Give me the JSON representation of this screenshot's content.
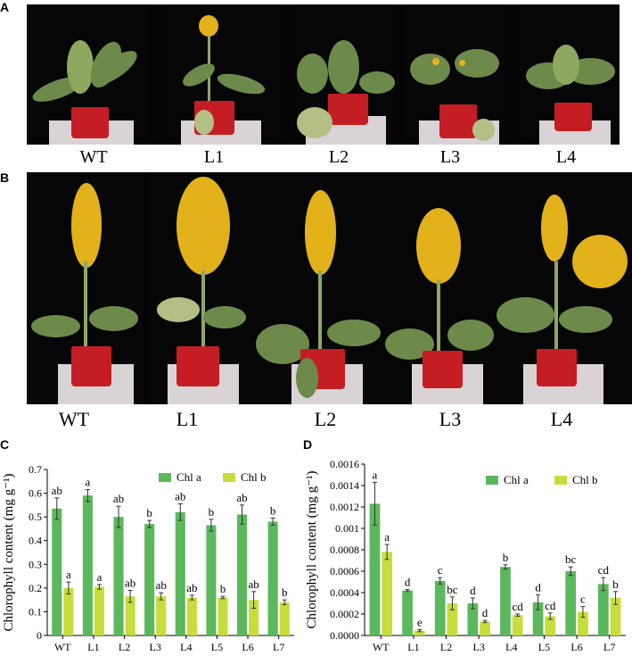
{
  "panels": {
    "A": {
      "letter": "A",
      "labels": [
        "WT",
        "L1",
        "L2",
        "L3",
        "L4"
      ]
    },
    "B": {
      "letter": "B",
      "labels": [
        "WT",
        "L1",
        "L2",
        "L3",
        "L4"
      ]
    },
    "C": {
      "letter": "C"
    },
    "D": {
      "letter": "D"
    }
  },
  "colors": {
    "chl_a": "#5cb85c",
    "chl_b": "#c8dc3c"
  },
  "chart_data": [
    {
      "type": "bar",
      "panel": "C",
      "ylabel": "Chlorophyll content (mg g⁻¹)",
      "ylim": [
        0,
        0.7
      ],
      "yticks": [
        "0",
        "0.1",
        "0.2",
        "0.3",
        "0.4",
        "0.5",
        "0.6",
        "0.7"
      ],
      "categories": [
        "WT",
        "L1",
        "L2",
        "L3",
        "L4",
        "L5",
        "L6",
        "L7"
      ],
      "legend": [
        "Chl a",
        "Chl b"
      ],
      "series": [
        {
          "name": "Chl a",
          "values": [
            0.535,
            0.59,
            0.5,
            0.47,
            0.52,
            0.465,
            0.51,
            0.48
          ],
          "errors": [
            0.045,
            0.025,
            0.045,
            0.015,
            0.035,
            0.025,
            0.04,
            0.015
          ],
          "labels": [
            "ab",
            "a",
            "ab",
            "b",
            "ab",
            "b",
            "ab",
            "b"
          ]
        },
        {
          "name": "Chl b",
          "values": [
            0.2,
            0.205,
            0.165,
            0.165,
            0.16,
            0.16,
            0.15,
            0.14
          ],
          "errors": [
            0.025,
            0.01,
            0.025,
            0.015,
            0.01,
            0.005,
            0.035,
            0.01
          ],
          "labels": [
            "a",
            "a",
            "ab",
            "ab",
            "ab",
            "b",
            "ab",
            "b"
          ]
        }
      ]
    },
    {
      "type": "bar",
      "panel": "D",
      "ylabel": "Chlorophyll content (mg g⁻¹)",
      "ylim": [
        0,
        0.0016
      ],
      "yticks": [
        "0.0000",
        "0.0002",
        "0.0004",
        "0.0006",
        "0.0008",
        "0.001",
        "0.0012",
        "0.0014",
        "0.0016"
      ],
      "categories": [
        "WT",
        "L1",
        "L2",
        "L3",
        "L4",
        "L5",
        "L6",
        "L7"
      ],
      "legend": [
        "Chl a",
        "Chl b"
      ],
      "series": [
        {
          "name": "Chl a",
          "values": [
            0.00123,
            0.00042,
            0.00051,
            0.0003,
            0.00064,
            0.00031,
            0.0006,
            0.00048
          ],
          "errors": [
            0.0002,
            1e-05,
            3e-05,
            5e-05,
            2e-05,
            7e-05,
            4e-05,
            6e-05
          ],
          "labels": [
            "a",
            "d",
            "c",
            "d",
            "b",
            "d",
            "bc",
            "cd"
          ]
        },
        {
          "name": "Chl b",
          "values": [
            0.00078,
            4.5e-05,
            0.0003,
            0.00013,
            0.00019,
            0.00018,
            0.00022,
            0.00035
          ],
          "errors": [
            7e-05,
            1e-05,
            6e-05,
            1e-05,
            1e-05,
            3e-05,
            5e-05,
            6e-05
          ],
          "labels": [
            "a",
            "e",
            "bc",
            "d",
            "cd",
            "cd",
            "c",
            "b"
          ]
        }
      ]
    }
  ]
}
